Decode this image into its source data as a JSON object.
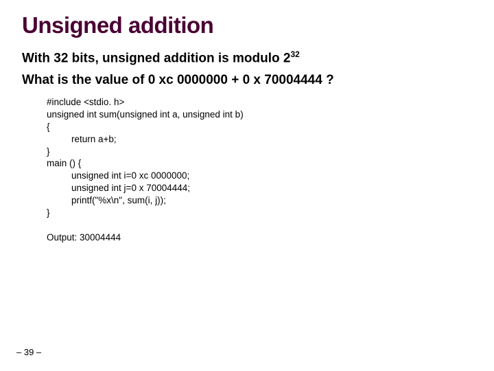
{
  "title": "Unsigned addition",
  "subtitle_pre": "With 32 bits, unsigned addition is modulo 2",
  "subtitle_exp": "32",
  "question": "What is the value of 0 xc 0000000 + 0 x 70004444 ?",
  "code": {
    "l1": "#include <stdio. h>",
    "l2": "unsigned int sum(unsigned int a, unsigned int b)",
    "l3": "{",
    "l4": "return a+b;",
    "l5": "}",
    "l6": "main () {",
    "l7": "unsigned int i=0 xc 0000000;",
    "l8": "unsigned int j=0 x 70004444;",
    "l9": "printf(\"%x\\n\", sum(i, j));",
    "l10": "}"
  },
  "output": "Output: 30004444",
  "footer": "– 39 –",
  "colors": {
    "title": "#4a0033",
    "text": "#000000",
    "background": "#ffffff"
  },
  "fontsizes": {
    "title": 33,
    "subtitle": 19,
    "code": 13.5,
    "footer": 13
  }
}
